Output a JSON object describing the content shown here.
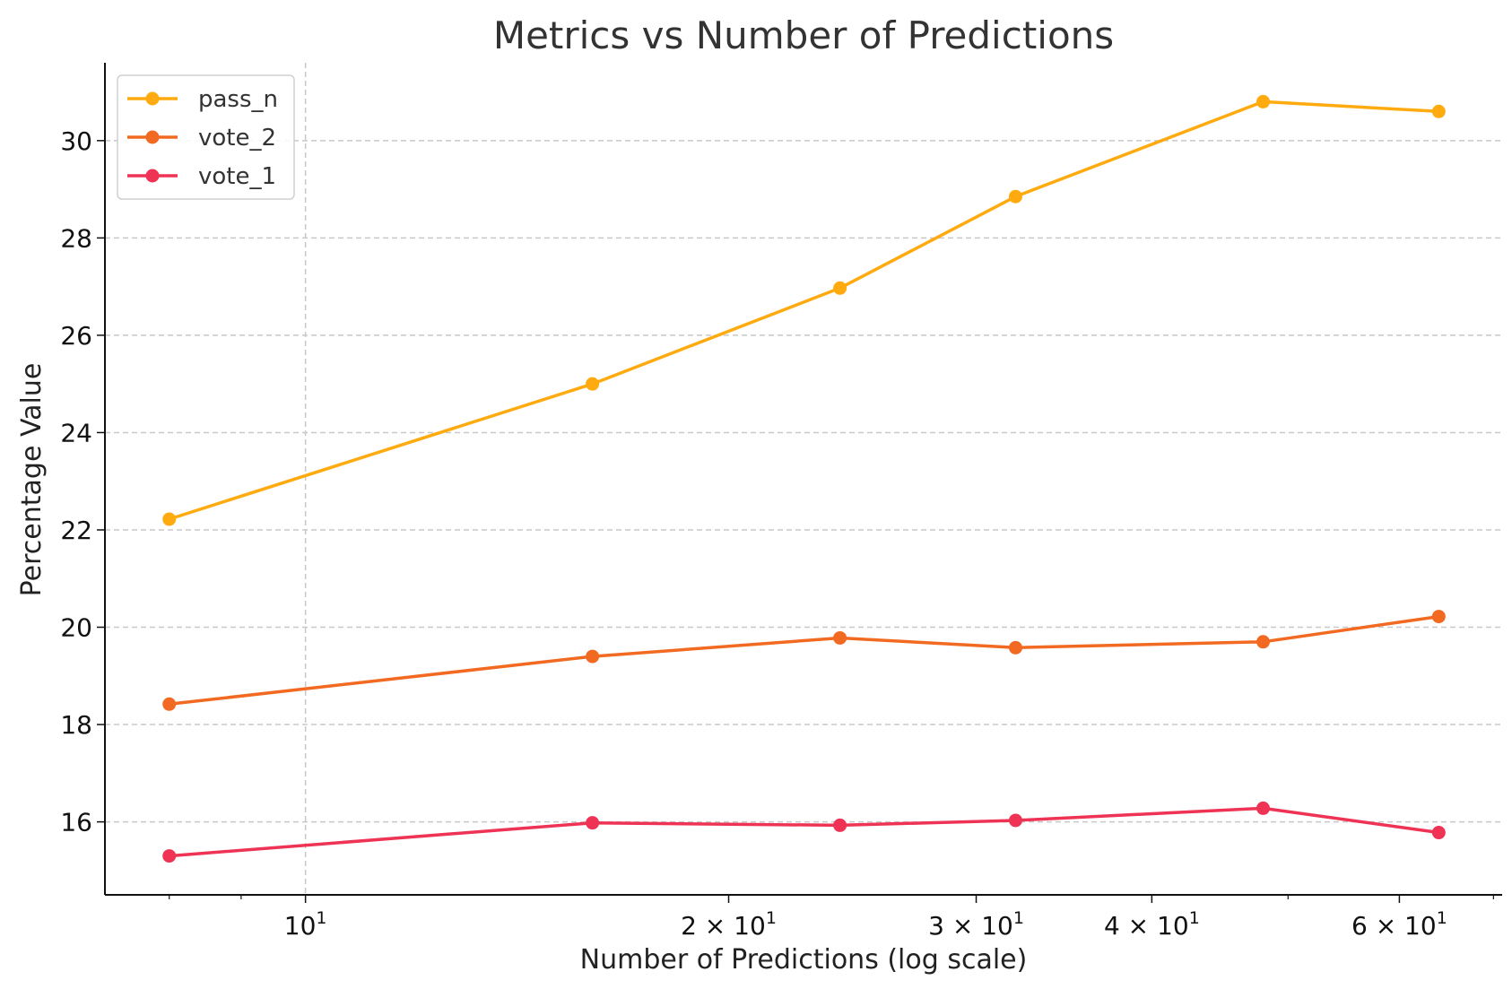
{
  "chart_data": {
    "type": "line",
    "title": "Metrics vs Number of Predictions",
    "xlabel": "Number of Predictions (log scale)",
    "ylabel": "Percentage Value",
    "xscale": "log",
    "x": [
      8,
      16,
      24,
      32,
      48,
      64
    ],
    "xlim": [
      7.2,
      71
    ],
    "ylim": [
      14.5,
      31.6
    ],
    "xticks": [
      {
        "value": 10,
        "base": "10",
        "exp": "1"
      },
      {
        "value": 20,
        "base": "2 × 10",
        "exp": "1"
      },
      {
        "value": 30,
        "base": "3 × 10",
        "exp": "1"
      },
      {
        "value": 40,
        "base": "4 × 10",
        "exp": "1"
      },
      {
        "value": 60,
        "base": "6 × 10",
        "exp": "1"
      }
    ],
    "xminor": [
      8,
      9,
      50,
      70
    ],
    "yticks": [
      16,
      18,
      20,
      22,
      24,
      26,
      28,
      30
    ],
    "grid": true,
    "legend_position": "top-left",
    "series": [
      {
        "name": "pass_n",
        "color": "#FFAB0F",
        "values": [
          22.22,
          25.0,
          26.97,
          28.85,
          30.8,
          30.6
        ]
      },
      {
        "name": "vote_2",
        "color": "#F26A22",
        "values": [
          18.42,
          19.4,
          19.78,
          19.58,
          19.7,
          20.22
        ]
      },
      {
        "name": "vote_1",
        "color": "#EE3355",
        "values": [
          15.3,
          15.98,
          15.93,
          16.03,
          16.28,
          15.78
        ]
      }
    ]
  }
}
